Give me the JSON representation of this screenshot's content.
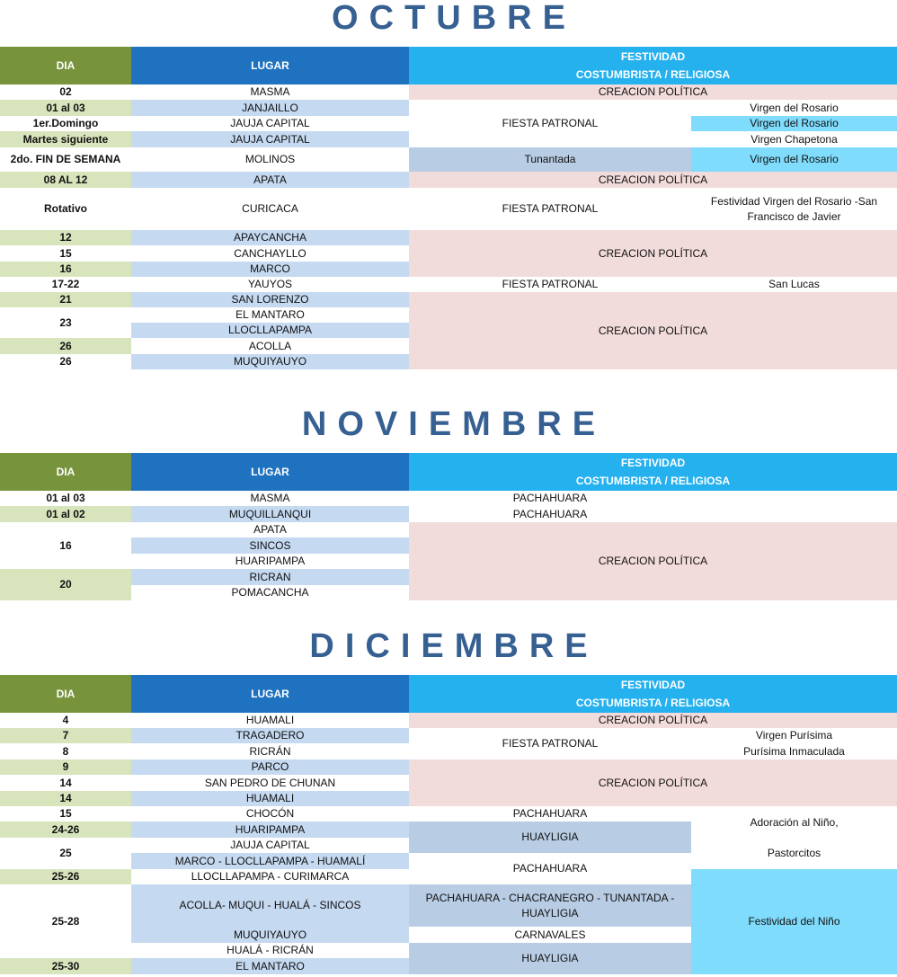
{
  "colors": {
    "title": "#376092",
    "header_dia": "#77933c",
    "header_lugar": "#1f72c0",
    "header_festividad": "#25b0ee",
    "w": "#ffffff",
    "g": "#d8e4bc",
    "b": "#c5d9f1",
    "p": "#f2dcdb",
    "s": "#b8cce4",
    "c": "#80dcfc"
  },
  "header": {
    "dia": "DIA",
    "lugar": "LUGAR",
    "festividad": "FESTIVIDAD\nCOSTUMBRISTA / RELIGIOSA"
  },
  "months": [
    {
      "title": "OCTUBRE",
      "rows": [
        [
          {
            "t": "02",
            "c": "w"
          },
          {
            "t": "MASMA",
            "c": "w"
          },
          {
            "t": "CREACION POLÍTICA",
            "c": "p",
            "cs": 2
          }
        ],
        [
          {
            "t": "01 al 03",
            "c": "g"
          },
          {
            "t": "JANJAILLO",
            "c": "b"
          },
          {
            "t": "FIESTA PATRONAL",
            "c": "w",
            "rs": 3
          },
          {
            "t": "Virgen del Rosario",
            "c": "w"
          }
        ],
        [
          {
            "t": "1er.Domingo",
            "c": "w"
          },
          {
            "t": "JAUJA CAPITAL",
            "c": "w"
          },
          {
            "t": "Virgen del Rosario",
            "c": "c"
          }
        ],
        [
          {
            "t": "Martes  siguiente",
            "c": "g"
          },
          {
            "t": "JAUJA CAPITAL",
            "c": "b"
          },
          {
            "t": "Virgen Chapetona",
            "c": "w"
          }
        ],
        [
          {
            "t": "2do. FIN DE SEMANA",
            "c": "w"
          },
          {
            "t": "MOLINOS",
            "c": "w"
          },
          {
            "t": "Tunantada",
            "c": "s"
          },
          {
            "t": "Virgen del Rosario",
            "c": "c"
          }
        ],
        [
          {
            "t": "08 AL 12",
            "c": "g"
          },
          {
            "t": "APATA",
            "c": "b"
          },
          {
            "t": "CREACION POLÍTICA",
            "c": "p",
            "cs": 2
          }
        ],
        [
          {
            "t": "Rotativo",
            "c": "w"
          },
          {
            "t": "CURICACA",
            "c": "w"
          },
          {
            "t": "FIESTA PATRONAL",
            "c": "w"
          },
          {
            "t": "Festividad Virgen del Rosario -San\nFrancisco de Javier",
            "c": "w"
          }
        ],
        [
          {
            "t": "12",
            "c": "g"
          },
          {
            "t": "APAYCANCHA",
            "c": "b"
          },
          {
            "t": "CREACION POLÍTICA",
            "c": "p",
            "cs": 2,
            "rs": 3
          }
        ],
        [
          {
            "t": "15",
            "c": "w"
          },
          {
            "t": "CANCHAYLLO",
            "c": "w"
          }
        ],
        [
          {
            "t": "16",
            "c": "g"
          },
          {
            "t": "MARCO",
            "c": "b"
          }
        ],
        [
          {
            "t": "17-22",
            "c": "w"
          },
          {
            "t": "YAUYOS",
            "c": "w"
          },
          {
            "t": "FIESTA PATRONAL",
            "c": "w"
          },
          {
            "t": "San Lucas",
            "c": "w"
          }
        ],
        [
          {
            "t": "21",
            "c": "g"
          },
          {
            "t": "SAN LORENZO",
            "c": "b"
          },
          {
            "t": "CREACION POLÍTICA",
            "c": "p",
            "cs": 2,
            "rs": 5
          }
        ],
        [
          {
            "t": "23",
            "c": "w",
            "rs": 2
          },
          {
            "t": "EL MANTARO",
            "c": "w"
          }
        ],
        [
          {
            "t": "LLOCLLAPAMPA",
            "c": "b"
          }
        ],
        [
          {
            "t": "26",
            "c": "g"
          },
          {
            "t": "ACOLLA",
            "c": "w"
          }
        ],
        [
          {
            "t": "26",
            "c": "w"
          },
          {
            "t": "MUQUIYAUYO",
            "c": "b"
          }
        ]
      ]
    },
    {
      "title": "NOVIEMBRE",
      "rows": [
        [
          {
            "t": "01 al 03",
            "c": "w"
          },
          {
            "t": "MASMA",
            "c": "w"
          },
          {
            "t": "PACHAHUARA",
            "c": "w"
          },
          {
            "t": "",
            "c": "w"
          }
        ],
        [
          {
            "t": "01 al 02",
            "c": "g"
          },
          {
            "t": "MUQUILLANQUI",
            "c": "b"
          },
          {
            "t": "PACHAHUARA",
            "c": "w"
          },
          {
            "t": "",
            "c": "w"
          }
        ],
        [
          {
            "t": "16",
            "c": "w",
            "rs": 3
          },
          {
            "t": "APATA",
            "c": "w"
          },
          {
            "t": "CREACION POLÍTICA",
            "c": "p",
            "cs": 2,
            "rs": 5
          }
        ],
        [
          {
            "t": "SINCOS",
            "c": "b"
          }
        ],
        [
          {
            "t": "HUARIPAMPA",
            "c": "w"
          }
        ],
        [
          {
            "t": "20",
            "c": "g",
            "rs": 2
          },
          {
            "t": "RICRAN",
            "c": "b"
          }
        ],
        [
          {
            "t": "POMACANCHA",
            "c": "w"
          }
        ]
      ]
    },
    {
      "title": "DICIEMBRE",
      "rows": [
        [
          {
            "t": "4",
            "c": "w"
          },
          {
            "t": "HUAMALI",
            "c": "w"
          },
          {
            "t": "CREACION POLÍTICA",
            "c": "p",
            "cs": 2
          }
        ],
        [
          {
            "t": "7",
            "c": "g"
          },
          {
            "t": "TRAGADERO",
            "c": "b"
          },
          {
            "t": "FIESTA PATRONAL",
            "c": "w",
            "rs": 2
          },
          {
            "t": "Virgen Purísima",
            "c": "w"
          }
        ],
        [
          {
            "t": "8",
            "c": "w"
          },
          {
            "t": "RICRÁN",
            "c": "w"
          },
          {
            "t": "Purísima Inmaculada",
            "c": "w"
          }
        ],
        [
          {
            "t": "9",
            "c": "g"
          },
          {
            "t": "PARCO",
            "c": "b"
          },
          {
            "t": "CREACION POLÍTICA",
            "c": "p",
            "cs": 2,
            "rs": 3
          }
        ],
        [
          {
            "t": "14",
            "c": "w"
          },
          {
            "t": "SAN PEDRO DE CHUNAN",
            "c": "w"
          }
        ],
        [
          {
            "t": "14",
            "c": "g"
          },
          {
            "t": "HUAMALI",
            "c": "b"
          }
        ],
        [
          {
            "t": "15",
            "c": "w"
          },
          {
            "t": "CHOCÓN",
            "c": "w"
          },
          {
            "t": "PACHAHUARA",
            "c": "w"
          },
          {
            "t": "Adoración al Niño,\n\nPastorcitos",
            "c": "w",
            "rs": 4
          }
        ],
        [
          {
            "t": "24-26",
            "c": "g"
          },
          {
            "t": "HUARIPAMPA",
            "c": "b"
          },
          {
            "t": "HUAYLIGIA",
            "c": "s",
            "rs": 2
          }
        ],
        [
          {
            "t": "25",
            "c": "w",
            "rs": 2
          },
          {
            "t": "JAUJA CAPITAL",
            "c": "w"
          }
        ],
        [
          {
            "t": "MARCO  - LLOCLLAPAMPA - HUAMALÍ",
            "c": "b"
          },
          {
            "t": "PACHAHUARA",
            "c": "w",
            "rs": 2
          }
        ],
        [
          {
            "t": "25-26",
            "c": "g"
          },
          {
            "t": "LLOCLLAPAMPA - CURIMARCA",
            "c": "w"
          },
          {
            "t": "Festividad del Niño",
            "c": "c",
            "rs": 5
          }
        ],
        [
          {
            "t": "25-28",
            "c": "w",
            "rs": 3
          },
          {
            "t": "ACOLLA- MUQUI - HUALÁ - SINCOS",
            "c": "b"
          },
          {
            "t": "PACHAHUARA - CHACRANEGRO - TUNANTADA -\nHUAYLIGIA",
            "c": "s"
          }
        ],
        [
          {
            "t": "MUQUIYAUYO",
            "c": "b"
          },
          {
            "t": "CARNAVALES",
            "c": "w"
          }
        ],
        [
          {
            "t": "HUALÁ - RICRÁN",
            "c": "w"
          },
          {
            "t": "HUAYLIGIA",
            "c": "s",
            "rs": 2
          }
        ],
        [
          {
            "t": "25-30",
            "c": "g"
          },
          {
            "t": "EL MANTARO",
            "c": "b"
          }
        ]
      ]
    }
  ]
}
